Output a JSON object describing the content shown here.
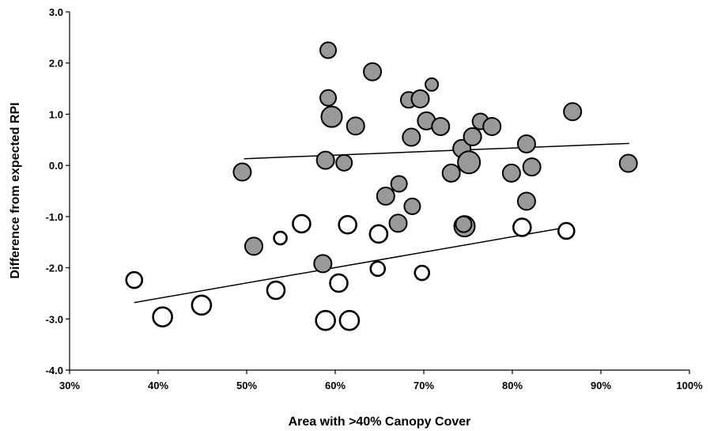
{
  "chart_data": {
    "type": "scatter",
    "title": "",
    "xlabel": "Area with >40% Canopy Cover",
    "ylabel": "Difference from expected RPI",
    "xlim": [
      0.3,
      1.0
    ],
    "ylim": [
      -4.0,
      3.0
    ],
    "x_ticks": [
      "30%",
      "40%",
      "50%",
      "60%",
      "70%",
      "80%",
      "90%",
      "100%"
    ],
    "y_ticks": [
      "3.0",
      "2.0",
      "1.0",
      "0.0",
      "-1.0",
      "-2.0",
      "-3.0",
      "-4.0"
    ],
    "grid": false,
    "legend": "none",
    "series": [
      {
        "fill": "#999999",
        "stroke": "#000000",
        "points": [
          {
            "x": 0.495,
            "y": -0.13,
            "r": 11
          },
          {
            "x": 0.508,
            "y": -1.58,
            "r": 11
          },
          {
            "x": 0.586,
            "y": -1.92,
            "r": 11
          },
          {
            "x": 0.589,
            "y": 0.1,
            "r": 11
          },
          {
            "x": 0.592,
            "y": 2.25,
            "r": 10
          },
          {
            "x": 0.592,
            "y": 1.32,
            "r": 10
          },
          {
            "x": 0.596,
            "y": 0.95,
            "r": 13
          },
          {
            "x": 0.61,
            "y": 0.05,
            "r": 10
          },
          {
            "x": 0.623,
            "y": 0.77,
            "r": 11
          },
          {
            "x": 0.642,
            "y": 1.83,
            "r": 11
          },
          {
            "x": 0.657,
            "y": -0.6,
            "r": 11
          },
          {
            "x": 0.671,
            "y": -1.13,
            "r": 11
          },
          {
            "x": 0.672,
            "y": -0.36,
            "r": 10
          },
          {
            "x": 0.683,
            "y": 1.28,
            "r": 10
          },
          {
            "x": 0.686,
            "y": 0.55,
            "r": 11
          },
          {
            "x": 0.687,
            "y": -0.8,
            "r": 10
          },
          {
            "x": 0.696,
            "y": 1.3,
            "r": 11
          },
          {
            "x": 0.703,
            "y": 0.87,
            "r": 11
          },
          {
            "x": 0.709,
            "y": 1.58,
            "r": 8
          },
          {
            "x": 0.719,
            "y": 0.76,
            "r": 11
          },
          {
            "x": 0.731,
            "y": -0.15,
            "r": 11
          },
          {
            "x": 0.743,
            "y": 0.33,
            "r": 11
          },
          {
            "x": 0.746,
            "y": -1.19,
            "r": 13
          },
          {
            "x": 0.745,
            "y": -1.15,
            "r": 10
          },
          {
            "x": 0.751,
            "y": 0.06,
            "r": 14
          },
          {
            "x": 0.755,
            "y": 0.56,
            "r": 11
          },
          {
            "x": 0.764,
            "y": 0.86,
            "r": 10
          },
          {
            "x": 0.777,
            "y": 0.76,
            "r": 11
          },
          {
            "x": 0.799,
            "y": -0.15,
            "r": 11
          },
          {
            "x": 0.816,
            "y": 0.42,
            "r": 11
          },
          {
            "x": 0.816,
            "y": -0.7,
            "r": 11
          },
          {
            "x": 0.822,
            "y": -0.03,
            "r": 11
          },
          {
            "x": 0.868,
            "y": 1.05,
            "r": 11
          },
          {
            "x": 0.931,
            "y": 0.04,
            "r": 11
          }
        ]
      },
      {
        "fill": "#ffffff",
        "stroke": "#000000",
        "points": [
          {
            "x": 0.373,
            "y": -2.24,
            "r": 10
          },
          {
            "x": 0.405,
            "y": -2.96,
            "r": 12
          },
          {
            "x": 0.449,
            "y": -2.73,
            "r": 12
          },
          {
            "x": 0.533,
            "y": -2.44,
            "r": 11
          },
          {
            "x": 0.538,
            "y": -1.42,
            "r": 8
          },
          {
            "x": 0.562,
            "y": -1.14,
            "r": 11
          },
          {
            "x": 0.589,
            "y": -3.03,
            "r": 12
          },
          {
            "x": 0.604,
            "y": -2.3,
            "r": 11
          },
          {
            "x": 0.614,
            "y": -1.16,
            "r": 11
          },
          {
            "x": 0.616,
            "y": -3.03,
            "r": 12
          },
          {
            "x": 0.648,
            "y": -2.02,
            "r": 9
          },
          {
            "x": 0.649,
            "y": -1.34,
            "r": 11
          },
          {
            "x": 0.698,
            "y": -2.1,
            "r": 9
          },
          {
            "x": 0.811,
            "y": -1.21,
            "r": 11
          },
          {
            "x": 0.861,
            "y": -1.28,
            "r": 10
          }
        ]
      }
    ],
    "trendlines": [
      {
        "x1": 0.497,
        "y1": 0.13,
        "x2": 0.932,
        "y2": 0.43
      },
      {
        "x1": 0.373,
        "y1": -2.68,
        "x2": 0.858,
        "y2": -1.22
      }
    ]
  }
}
